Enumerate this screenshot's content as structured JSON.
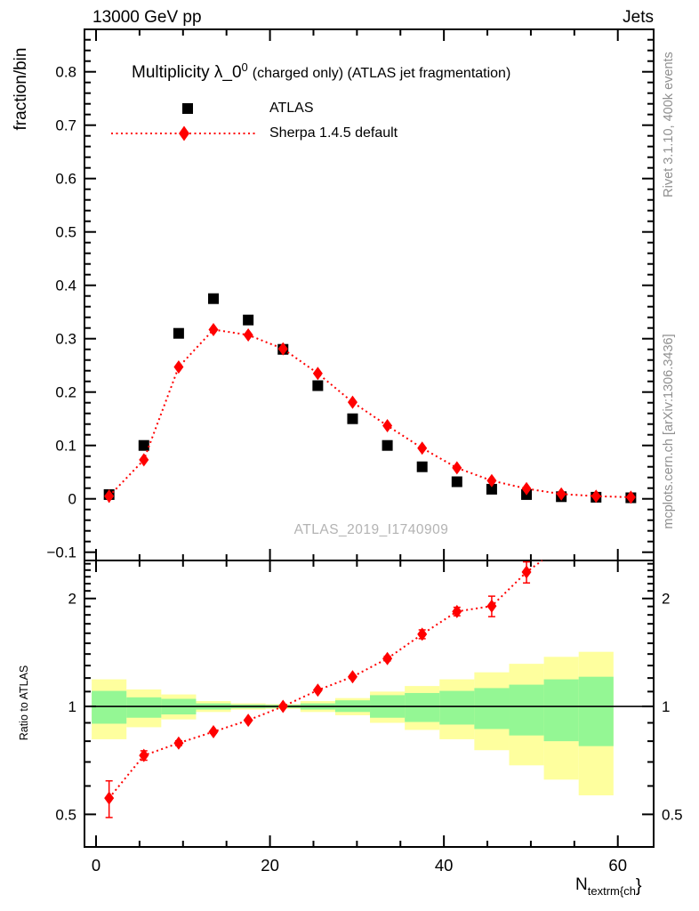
{
  "header": {
    "left": "13000 GeV pp",
    "right": "Jets"
  },
  "title": {
    "main": "Multiplicity λ_0",
    "sup": "0",
    "paren": "(charged only) (ATLAS jet fragmentation)"
  },
  "legend": [
    {
      "label": "ATLAS",
      "marker": "black-square"
    },
    {
      "label": "Sherpa 1.4.5 default",
      "marker": "red-diamond-dotted-line"
    }
  ],
  "watermark": "ATLAS_2019_I1740909",
  "side_texts": {
    "top_right": "Rivet 3.1.10,  400k events",
    "bottom_right": "mcplots.cern.ch [arXiv:1306.3436]"
  },
  "axis_labels": {
    "y_main": "fraction/bin",
    "y_ratio": "Ratio to ATLAS",
    "x_main": "N",
    "x_sub": "textrm{ch",
    "x_brace": "}"
  },
  "colors": {
    "data": "#000000",
    "mc": "#ff0000",
    "band_yellow": "#feff9e",
    "band_green": "#94f794",
    "gray_text": "#8f8f8f",
    "watermark_gray": "#b3b3b3"
  },
  "chart_data": {
    "type": "line",
    "title": "Multiplicity λ_0^0 (charged only) (ATLAS jet fragmentation)",
    "xlabel": "N_textrm{ch}",
    "ylabel": "fraction/bin",
    "ratio_ylabel": "Ratio to ATLAS",
    "x": [
      1.5,
      5.5,
      9.5,
      13.5,
      17.5,
      21.5,
      25.5,
      29.5,
      33.5,
      37.5,
      41.5,
      45.5,
      49.5,
      53.5,
      57.5,
      61.5
    ],
    "series": [
      {
        "name": "ATLAS",
        "marker": "square",
        "color": "#000000",
        "values": [
          0.008,
          0.1,
          0.31,
          0.375,
          0.335,
          0.28,
          0.212,
          0.15,
          0.1,
          0.06,
          0.032,
          0.018,
          0.008,
          0.004,
          0.003,
          0.002
        ]
      },
      {
        "name": "Sherpa 1.4.5 default",
        "marker": "diamond",
        "color": "#ff0000",
        "linestyle": "dotted",
        "values": [
          0.005,
          0.073,
          0.247,
          0.317,
          0.307,
          0.281,
          0.235,
          0.181,
          0.137,
          0.095,
          0.058,
          0.034,
          0.019,
          0.009,
          0.005,
          0.003
        ],
        "errors": [
          0.012,
          0.005,
          0.004,
          0.004,
          0.004,
          0.003,
          0.003,
          0.003,
          0.002,
          0.002,
          0.002,
          0.002,
          0.001,
          0.001,
          0.001,
          0.001
        ]
      }
    ],
    "ratio": {
      "name": "Sherpa/ATLAS",
      "x": [
        1.5,
        5.5,
        9.5,
        13.5,
        17.5,
        21.5,
        25.5,
        29.5,
        33.5,
        37.5,
        41.5,
        45.5,
        49.5
      ],
      "values": [
        0.555,
        0.73,
        0.79,
        0.85,
        0.915,
        1.0,
        1.11,
        1.21,
        1.36,
        1.59,
        1.84,
        1.905,
        2.37
      ],
      "errors": [
        0.065,
        0.022,
        0.012,
        0.008,
        0.006,
        0.006,
        0.008,
        0.012,
        0.02,
        0.045,
        0.05,
        0.125,
        0.16
      ],
      "exit_x": 51.3
    },
    "bands": {
      "bin_width": 4,
      "x": [
        1.5,
        5.5,
        9.5,
        13.5,
        17.5,
        21.5,
        25.5,
        29.5,
        33.5,
        37.5,
        41.5,
        45.5,
        49.5,
        53.5,
        57.5
      ],
      "yellow": [
        [
          0.81,
          1.19
        ],
        [
          0.875,
          1.115
        ],
        [
          0.92,
          1.08
        ],
        [
          0.965,
          1.035
        ],
        [
          0.98,
          1.02
        ],
        [
          0.985,
          1.015
        ],
        [
          0.965,
          1.035
        ],
        [
          0.945,
          1.055
        ],
        [
          0.9,
          1.1
        ],
        [
          0.86,
          1.14
        ],
        [
          0.81,
          1.19
        ],
        [
          0.755,
          1.245
        ],
        [
          0.685,
          1.315
        ],
        [
          0.625,
          1.375
        ],
        [
          0.565,
          1.42
        ]
      ],
      "green": [
        [
          0.895,
          1.105
        ],
        [
          0.93,
          1.06
        ],
        [
          0.95,
          1.05
        ],
        [
          0.98,
          1.02
        ],
        [
          0.988,
          1.012
        ],
        [
          0.99,
          1.01
        ],
        [
          0.98,
          1.02
        ],
        [
          0.965,
          1.04
        ],
        [
          0.93,
          1.075
        ],
        [
          0.905,
          1.09
        ],
        [
          0.89,
          1.105
        ],
        [
          0.865,
          1.125
        ],
        [
          0.83,
          1.15
        ],
        [
          0.8,
          1.19
        ],
        [
          0.775,
          1.21
        ]
      ]
    },
    "axes": {
      "x": {
        "min": -1.33,
        "max": 64.12,
        "major_ticks": [
          0,
          20,
          40,
          60
        ],
        "major_labels": [
          "0",
          "20",
          "40",
          "60"
        ],
        "minor_ticks": [
          5,
          10,
          15,
          25,
          30,
          35,
          45,
          50,
          55
        ]
      },
      "y_main": {
        "min": -0.1155,
        "max": 0.8795,
        "major_ticks": [
          -0.1,
          0,
          0.1,
          0.2,
          0.3,
          0.4,
          0.5,
          0.6,
          0.7,
          0.8
        ],
        "major_labels": [
          "−0.1",
          "0",
          "0.1",
          "0.2",
          "0.3",
          "0.4",
          "0.5",
          "0.6",
          "0.7",
          "0.8"
        ],
        "minor_step": 0.02
      },
      "y_ratio": {
        "scale": "log",
        "min": 0.4056,
        "max": 2.553,
        "major_ticks": [
          0.5,
          1,
          2
        ],
        "major_labels": [
          "0.5",
          "1",
          "2"
        ],
        "minor_ticks": [
          0.6,
          0.7,
          0.8,
          0.9,
          1.1,
          1.2,
          1.3,
          1.4,
          1.5,
          1.6,
          1.7,
          1.8,
          1.9,
          2.1,
          2.2,
          2.3,
          2.4,
          2.5
        ]
      },
      "grid": false,
      "legend_position": "top-left-inside"
    }
  }
}
